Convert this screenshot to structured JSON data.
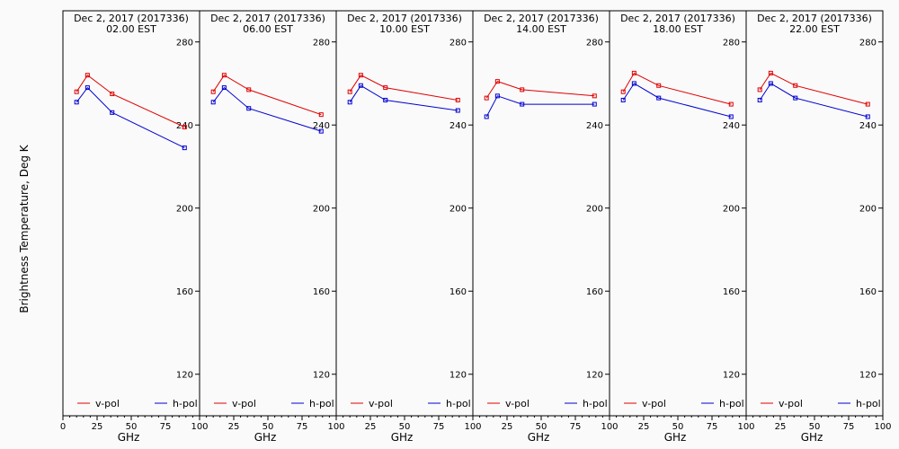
{
  "chart_data": {
    "type": "line",
    "ylabel": "Brightness Temperature, Deg K",
    "xlabel": "GHz",
    "ylim": [
      100,
      295
    ],
    "xlim": [
      0,
      100
    ],
    "yticks": [
      120,
      160,
      200,
      240,
      280
    ],
    "xticks": [
      0,
      25,
      50,
      75,
      100
    ],
    "legend": {
      "placement": "bottom",
      "entries": [
        "v-pol",
        "h-pol"
      ]
    },
    "colors": {
      "v-pol": "#e00000",
      "h-pol": "#0000d0"
    },
    "grid": false,
    "panels": [
      {
        "title_line1": "Dec  2, 2017 (2017336)",
        "title_line2": "02.00 EST",
        "x": [
          10,
          18,
          36,
          89
        ],
        "series": [
          {
            "name": "v-pol",
            "values": [
              256,
              264,
              255,
              239
            ]
          },
          {
            "name": "h-pol",
            "values": [
              251,
              258,
              246,
              229
            ]
          }
        ]
      },
      {
        "title_line1": "Dec  2, 2017 (2017336)",
        "title_line2": "06.00 EST",
        "x": [
          10,
          18,
          36,
          89
        ],
        "series": [
          {
            "name": "v-pol",
            "values": [
              256,
              264,
              257,
              245
            ]
          },
          {
            "name": "h-pol",
            "values": [
              251,
              258,
              248,
              237
            ]
          }
        ]
      },
      {
        "title_line1": "Dec  2, 2017 (2017336)",
        "title_line2": "10.00 EST",
        "x": [
          10,
          18,
          36,
          89
        ],
        "series": [
          {
            "name": "v-pol",
            "values": [
              256,
              264,
              258,
              252
            ]
          },
          {
            "name": "h-pol",
            "values": [
              251,
              259,
              252,
              247
            ]
          }
        ]
      },
      {
        "title_line1": "Dec  2, 2017 (2017336)",
        "title_line2": "14.00 EST",
        "x": [
          10,
          18,
          36,
          89
        ],
        "series": [
          {
            "name": "v-pol",
            "values": [
              253,
              261,
              257,
              254
            ]
          },
          {
            "name": "h-pol",
            "values": [
              244,
              254,
              250,
              250
            ]
          }
        ]
      },
      {
        "title_line1": "Dec  2, 2017 (2017336)",
        "title_line2": "18.00 EST",
        "x": [
          10,
          18,
          36,
          89
        ],
        "series": [
          {
            "name": "v-pol",
            "values": [
              256,
              265,
              259,
              250
            ]
          },
          {
            "name": "h-pol",
            "values": [
              252,
              260,
              253,
              244
            ]
          }
        ]
      },
      {
        "title_line1": "Dec  2, 2017 (2017336)",
        "title_line2": "22.00 EST",
        "x": [
          10,
          18,
          36,
          89
        ],
        "series": [
          {
            "name": "v-pol",
            "values": [
              257,
              265,
              259,
              250
            ]
          },
          {
            "name": "h-pol",
            "values": [
              252,
              260,
              253,
              244
            ]
          }
        ]
      }
    ]
  }
}
